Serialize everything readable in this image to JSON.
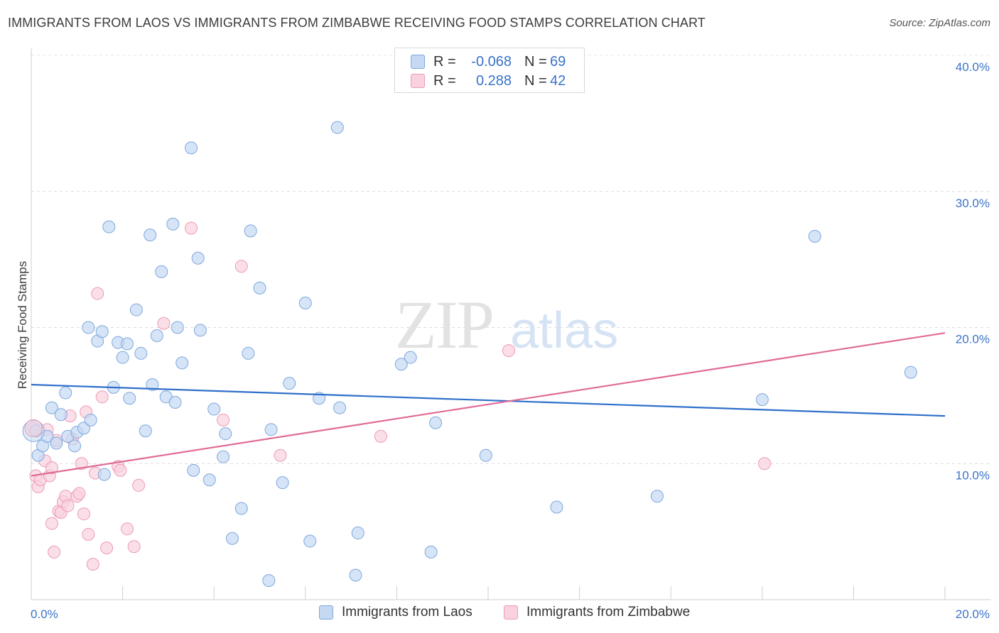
{
  "title": "IMMIGRANTS FROM LAOS VS IMMIGRANTS FROM ZIMBABWE RECEIVING FOOD STAMPS CORRELATION CHART",
  "source": "Source: ZipAtlas.com",
  "watermark": {
    "zip": "ZIP",
    "atlas": "atlas"
  },
  "legend_stats": [
    {
      "r_label": "R =",
      "r_value": "-0.068",
      "n_label": "N =",
      "n_value": "69",
      "color": "#8ab4e8"
    },
    {
      "r_label": "R =",
      "r_value": "0.288",
      "n_label": "N =",
      "n_value": "42",
      "color": "#f4a6bf"
    }
  ],
  "colors": {
    "blue_fill": "#c5d9f3",
    "blue_stroke": "#7fa8dc",
    "blue_line": "#2f6fca",
    "pink_fill": "#f9d2de",
    "pink_stroke": "#ec9bb6",
    "pink_line": "#e06b98",
    "tick_label": "#3a73c8"
  },
  "chart_data": {
    "type": "scatter",
    "title": "IMMIGRANTS FROM LAOS VS IMMIGRANTS FROM ZIMBABWE RECEIVING FOOD STAMPS CORRELATION CHART",
    "xlabel": "",
    "ylabel": "Receiving Food Stamps",
    "xlim": [
      0,
      20
    ],
    "ylim": [
      0,
      40
    ],
    "x_tick_labels": [
      "0.0%",
      "20.0%"
    ],
    "y_ticks": [
      10,
      20,
      30,
      40
    ],
    "y_tick_labels": [
      "10.0%",
      "20.0%",
      "30.0%",
      "40.0%"
    ],
    "legend_position": "bottom",
    "series": [
      {
        "name": "Immigrants from Laos",
        "trend": [
          [
            0,
            15.8
          ],
          [
            20,
            13.5
          ]
        ],
        "points": [
          [
            0.1,
            12.4
          ],
          [
            0.15,
            10.6
          ],
          [
            0.25,
            11.3
          ],
          [
            0.35,
            12.0
          ],
          [
            0.45,
            14.1
          ],
          [
            0.55,
            11.5
          ],
          [
            0.65,
            13.6
          ],
          [
            0.75,
            15.2
          ],
          [
            0.8,
            12.0
          ],
          [
            0.95,
            11.3
          ],
          [
            1.0,
            12.3
          ],
          [
            1.15,
            12.6
          ],
          [
            1.3,
            13.2
          ],
          [
            1.25,
            20.0
          ],
          [
            1.45,
            19.0
          ],
          [
            1.55,
            19.7
          ],
          [
            1.6,
            9.2
          ],
          [
            1.7,
            27.4
          ],
          [
            1.8,
            15.6
          ],
          [
            1.9,
            18.9
          ],
          [
            2.0,
            17.8
          ],
          [
            2.1,
            18.8
          ],
          [
            2.15,
            14.8
          ],
          [
            2.3,
            21.3
          ],
          [
            2.4,
            18.1
          ],
          [
            2.5,
            12.4
          ],
          [
            2.6,
            26.8
          ],
          [
            2.65,
            15.8
          ],
          [
            2.75,
            19.4
          ],
          [
            2.85,
            24.1
          ],
          [
            2.95,
            14.9
          ],
          [
            3.1,
            27.6
          ],
          [
            3.15,
            14.5
          ],
          [
            3.2,
            20.0
          ],
          [
            3.3,
            17.4
          ],
          [
            3.5,
            33.2
          ],
          [
            3.55,
            9.5
          ],
          [
            3.65,
            25.1
          ],
          [
            3.7,
            19.8
          ],
          [
            3.9,
            8.8
          ],
          [
            4.0,
            14.0
          ],
          [
            4.2,
            10.5
          ],
          [
            4.25,
            12.2
          ],
          [
            4.4,
            4.5
          ],
          [
            4.6,
            6.7
          ],
          [
            4.75,
            18.1
          ],
          [
            4.8,
            27.1
          ],
          [
            5.0,
            22.9
          ],
          [
            5.2,
            1.4
          ],
          [
            5.25,
            12.5
          ],
          [
            5.5,
            8.6
          ],
          [
            5.65,
            15.9
          ],
          [
            6.0,
            21.8
          ],
          [
            6.1,
            4.3
          ],
          [
            6.3,
            14.8
          ],
          [
            6.7,
            34.7
          ],
          [
            6.75,
            14.1
          ],
          [
            7.1,
            1.8
          ],
          [
            7.15,
            4.9
          ],
          [
            8.1,
            17.3
          ],
          [
            8.3,
            17.8
          ],
          [
            8.75,
            3.5
          ],
          [
            8.85,
            13.0
          ],
          [
            9.95,
            10.6
          ],
          [
            11.5,
            6.8
          ],
          [
            13.7,
            7.6
          ],
          [
            16.0,
            14.7
          ],
          [
            17.15,
            26.7
          ],
          [
            19.25,
            16.7
          ]
        ]
      },
      {
        "name": "Immigrants from Zimbabwe",
        "trend": [
          [
            0,
            9.1
          ],
          [
            20,
            19.6
          ]
        ],
        "points": [
          [
            0.05,
            12.6
          ],
          [
            0.1,
            9.1
          ],
          [
            0.15,
            8.3
          ],
          [
            0.2,
            8.8
          ],
          [
            0.3,
            10.2
          ],
          [
            0.35,
            12.5
          ],
          [
            0.4,
            9.1
          ],
          [
            0.45,
            9.7
          ],
          [
            0.45,
            5.6
          ],
          [
            0.5,
            3.5
          ],
          [
            0.55,
            11.7
          ],
          [
            0.6,
            6.5
          ],
          [
            0.65,
            6.4
          ],
          [
            0.7,
            7.2
          ],
          [
            0.75,
            7.6
          ],
          [
            0.8,
            6.9
          ],
          [
            0.85,
            13.5
          ],
          [
            0.9,
            11.8
          ],
          [
            1.0,
            7.6
          ],
          [
            1.05,
            7.8
          ],
          [
            1.1,
            10.0
          ],
          [
            1.15,
            6.3
          ],
          [
            1.2,
            13.8
          ],
          [
            1.25,
            4.8
          ],
          [
            1.4,
            9.3
          ],
          [
            1.45,
            22.5
          ],
          [
            1.55,
            14.9
          ],
          [
            1.65,
            3.8
          ],
          [
            1.9,
            9.8
          ],
          [
            1.95,
            9.5
          ],
          [
            2.1,
            5.2
          ],
          [
            2.25,
            3.9
          ],
          [
            2.35,
            8.4
          ],
          [
            2.9,
            20.3
          ],
          [
            3.5,
            27.3
          ],
          [
            4.2,
            13.2
          ],
          [
            4.6,
            24.5
          ],
          [
            5.45,
            10.6
          ],
          [
            7.65,
            12.0
          ],
          [
            1.35,
            2.6
          ],
          [
            10.45,
            18.3
          ],
          [
            16.05,
            10.0
          ]
        ]
      }
    ],
    "x_minor_ticks": [
      0,
      2,
      4,
      6,
      8,
      10,
      12,
      14,
      16,
      18,
      20
    ]
  }
}
